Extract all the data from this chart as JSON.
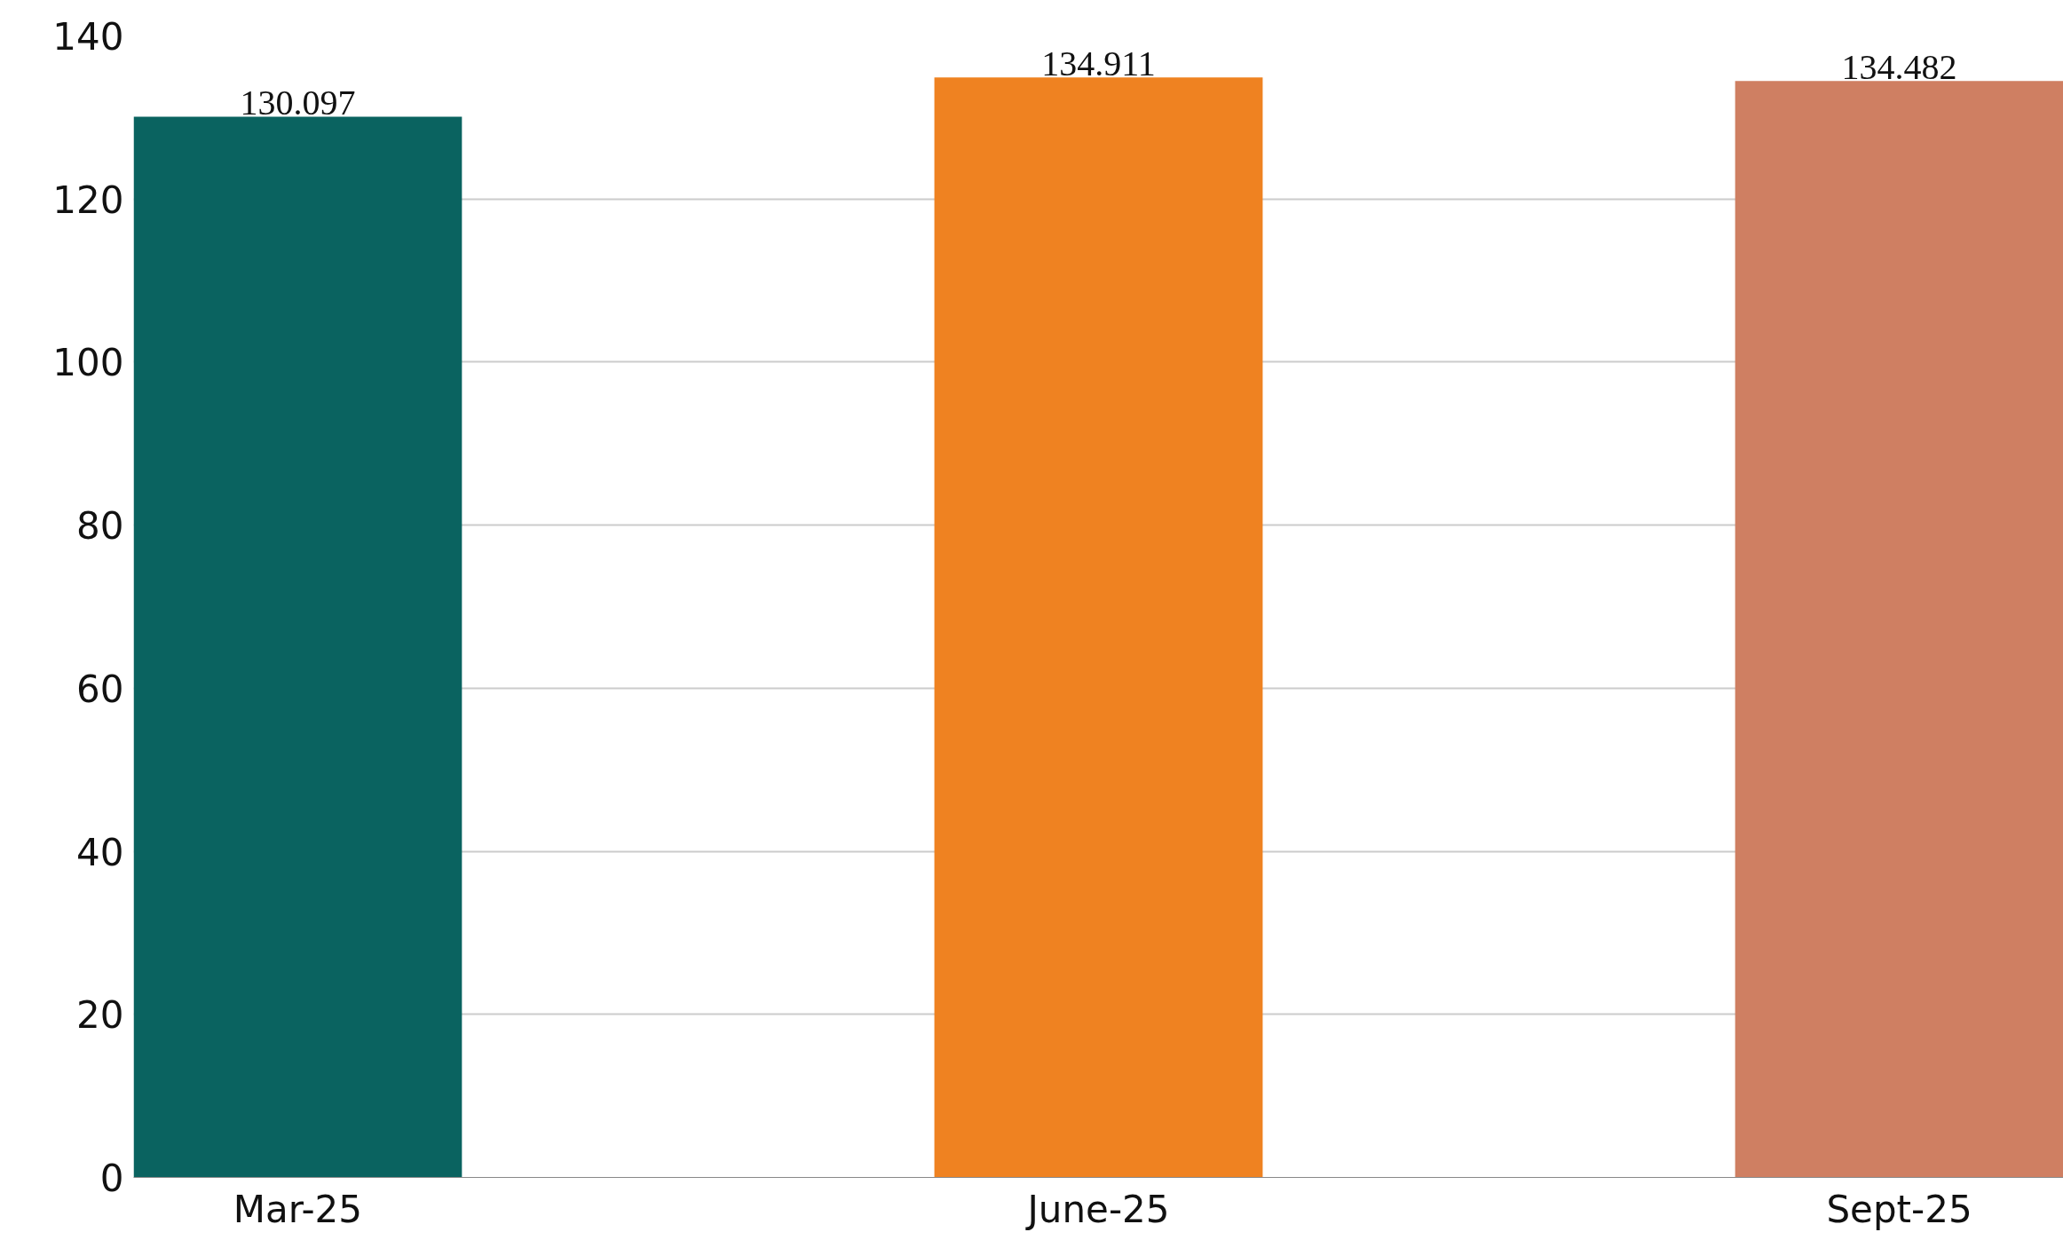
{
  "chart_data": {
    "type": "bar",
    "categories": [
      "Mar-25",
      "June-25",
      "Sept-25"
    ],
    "values": [
      130.097,
      134.911,
      134.482
    ],
    "colors": [
      "#0a6360",
      "#ef8221",
      "#cf7f62"
    ],
    "ylim": [
      0,
      140
    ],
    "yticks": [
      0,
      20,
      40,
      60,
      80,
      100,
      120,
      140
    ],
    "grid": "y",
    "data_labels": true
  }
}
